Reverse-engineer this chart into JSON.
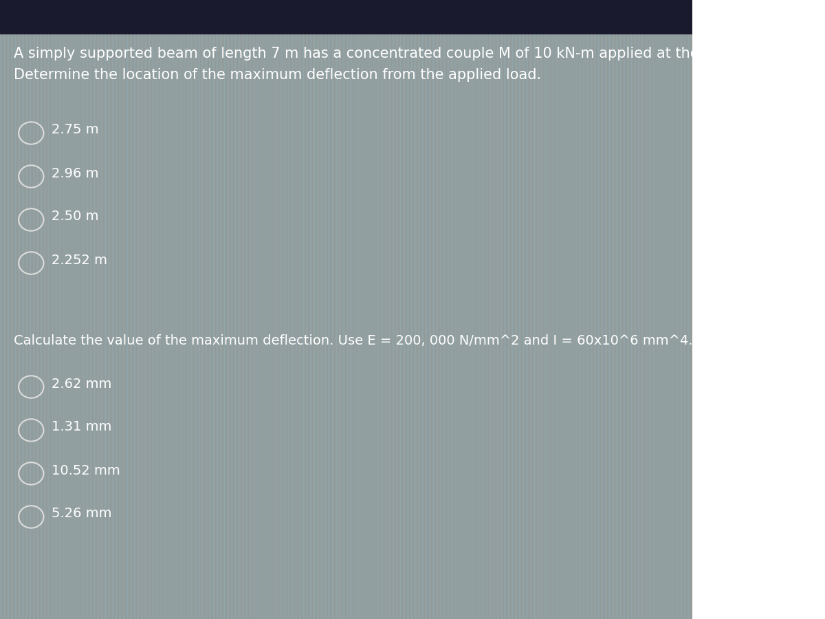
{
  "bg_top_color": "#7ab3c8",
  "bg_bottom_color": "#8a7a6a",
  "title_line1": "A simply supported beam of length 7 m has a concentrated couple M of 10 kN-m applied at the right end.",
  "title_line2": "Determine the location of the maximum deflection from the applied load.",
  "options_part1": [
    "2.75 m",
    "2.96 m",
    "2.50 m",
    "2.252 m"
  ],
  "part2_question": "Calculate the value of the maximum deflection. Use E = 200, 000 N/mm^2 and I = 60x10^6 mm^4.",
  "options_part2": [
    "2.62 mm",
    "1.31 mm",
    "10.52 mm",
    "5.26 mm"
  ],
  "text_color": "#ffffff",
  "font_size_title": 15,
  "font_size_options": 14,
  "circle_color": "#cccccc",
  "header_bar_color": "#1a1a2e"
}
